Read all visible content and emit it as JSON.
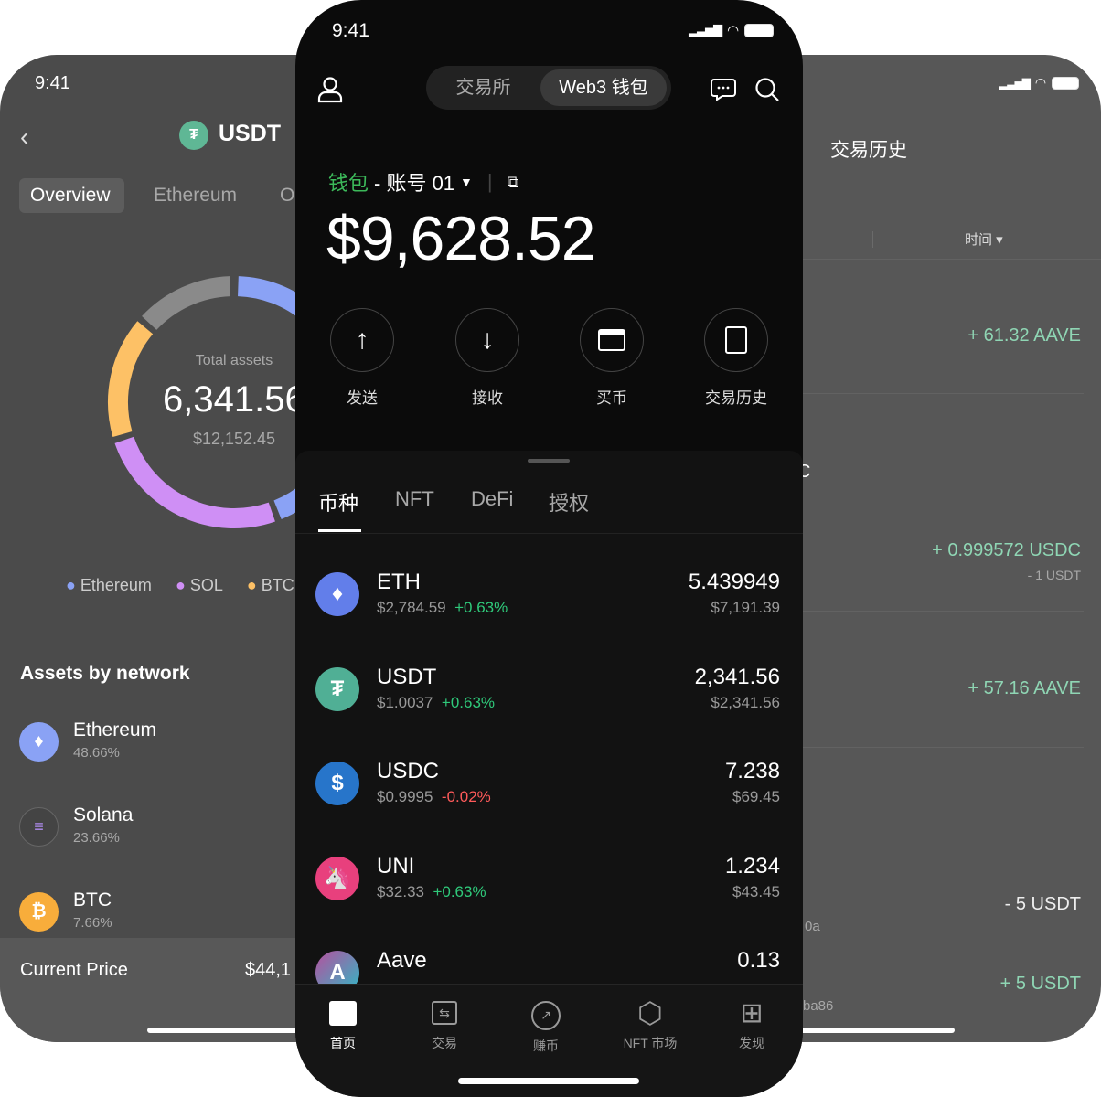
{
  "left": {
    "time": "9:41",
    "title": "USDT",
    "tabs": [
      "Overview",
      "Ethereum",
      "O"
    ],
    "donut": {
      "label": "Total assets",
      "value": "6,341.56",
      "usd": "$12,152.45"
    },
    "chart_data": {
      "type": "pie",
      "series": [
        {
          "name": "Ethereum",
          "color": "#8aa2f5"
        },
        {
          "name": "SOL",
          "color": "#cf8ff5"
        },
        {
          "name": "BTC",
          "color": "#fdc166"
        },
        {
          "name": "",
          "color": "#8a8a8a"
        }
      ]
    },
    "legend": [
      {
        "label": "Ethereum",
        "color": "#8aa2f5"
      },
      {
        "label": "SOL",
        "color": "#cf8ff5"
      },
      {
        "label": "BTC",
        "color": "#fdc166"
      }
    ],
    "section_title": "Assets by network",
    "networks": [
      {
        "name": "Ethereum",
        "pct": "48.66%"
      },
      {
        "name": "Solana",
        "pct": "23.66%"
      },
      {
        "name": "BTC",
        "pct": "7.66%"
      }
    ],
    "price_label": "Current Price",
    "price_value": "$44,1"
  },
  "right": {
    "title": "交易历史",
    "filter": "时间",
    "items": [
      {
        "amount": "+ 61.32 AAVE"
      },
      {
        "amount": "+ 0.999572 USDC",
        "sub": "- 1 USDT",
        "frag": "C"
      },
      {
        "amount": "+ 57.16 AAVE"
      },
      {
        "amount": "- 5 USDT",
        "sub": "0a"
      },
      {
        "amount": "+ 5 USDT",
        "sub": "ba86"
      }
    ]
  },
  "center": {
    "time": "9:41",
    "seg": [
      "交易所",
      "Web3 钱包"
    ],
    "wallet_label": "钱包",
    "account": "- 账号 01",
    "balance": "$9,628.52",
    "actions": [
      "发送",
      "接收",
      "买币",
      "交易历史"
    ],
    "tabs": [
      "币种",
      "NFT",
      "DeFi",
      "授权"
    ],
    "tokens": [
      {
        "name": "ETH",
        "price": "$2,784.59",
        "change": "+0.63%",
        "up": true,
        "amount": "5.439949",
        "value": "$7,191.39"
      },
      {
        "name": "USDT",
        "price": "$1.0037",
        "change": "+0.63%",
        "up": true,
        "amount": "2,341.56",
        "value": "$2,341.56"
      },
      {
        "name": "USDC",
        "price": "$0.9995",
        "change": "-0.02%",
        "up": false,
        "amount": "7.238",
        "value": "$69.45"
      },
      {
        "name": "UNI",
        "price": "$32.33",
        "change": "+0.63%",
        "up": true,
        "amount": "1.234",
        "value": "$43.45"
      },
      {
        "name": "Aave",
        "amount": "0.13"
      }
    ],
    "nav": [
      "首页",
      "交易",
      "赚币",
      "NFT 市场",
      "发现"
    ]
  }
}
